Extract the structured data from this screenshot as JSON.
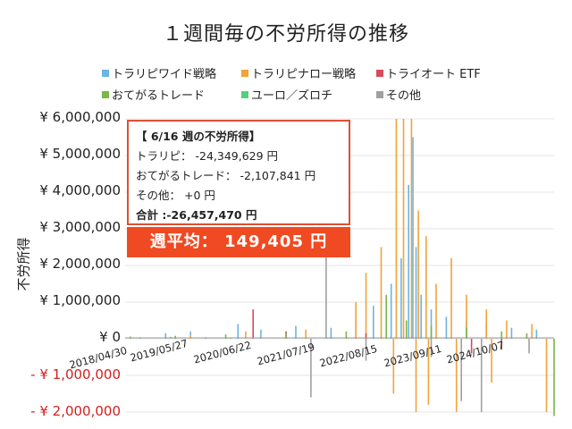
{
  "chart_data": {
    "type": "bar",
    "title": "１週間毎の不労所得の推移",
    "xlabel": "",
    "ylabel": "不労所得",
    "ylim": [
      -2000000,
      6000000
    ],
    "y_ticks": [
      {
        "value": 6000000,
        "label": "¥ 6,000,000"
      },
      {
        "value": 5000000,
        "label": "¥ 5,000,000"
      },
      {
        "value": 4000000,
        "label": "¥ 4,000,000"
      },
      {
        "value": 3000000,
        "label": "¥ 3,000,000"
      },
      {
        "value": 2000000,
        "label": "¥ 2,000,000"
      },
      {
        "value": 1000000,
        "label": "¥ 1,000,000"
      },
      {
        "value": 0,
        "label": "¥ 0"
      },
      {
        "value": -1000000,
        "label": "- ¥ 1,000,000"
      },
      {
        "value": -2000000,
        "label": "- ¥ 2,000,000"
      }
    ],
    "x_range": [
      "2018-04-30",
      "2025-06-16"
    ],
    "x_ticks": [
      "2018/04/30",
      "2019/05/27",
      "2020/06/22",
      "2021/07/19",
      "2022/08/15",
      "2023/09/11",
      "2024/10/07"
    ],
    "legend_position": "top",
    "series": [
      {
        "name": "トラリピワイド戦略",
        "color": "#6bb5e0",
        "points": [
          [
            "2019-01-01",
            150000
          ],
          [
            "2019-06-01",
            200000
          ],
          [
            "2020-03-15",
            400000
          ],
          [
            "2020-08-01",
            250000
          ],
          [
            "2021-03-01",
            350000
          ],
          [
            "2021-10-01",
            300000
          ],
          [
            "2022-03-01",
            500000
          ],
          [
            "2022-06-15",
            900000
          ],
          [
            "2022-10-01",
            1500000
          ],
          [
            "2022-12-01",
            2200000
          ],
          [
            "2023-01-15",
            4200000
          ],
          [
            "2023-02-10",
            5500000
          ],
          [
            "2023-03-01",
            2500000
          ],
          [
            "2023-04-01",
            1200000
          ],
          [
            "2023-06-01",
            800000
          ],
          [
            "2023-09-01",
            600000
          ],
          [
            "2024-01-01",
            500000
          ],
          [
            "2024-05-01",
            400000
          ],
          [
            "2024-10-01",
            300000
          ],
          [
            "2025-03-01",
            250000
          ]
        ]
      },
      {
        "name": "トラリピナロー戦略",
        "color": "#f2a33a",
        "points": [
          [
            "2019-06-01",
            100000
          ],
          [
            "2020-05-01",
            200000
          ],
          [
            "2021-05-01",
            250000
          ],
          [
            "2022-03-01",
            1000000
          ],
          [
            "2022-05-01",
            1800000
          ],
          [
            "2022-08-01",
            2500000
          ],
          [
            "2022-11-01",
            6000000
          ],
          [
            "2022-12-15",
            6000000
          ],
          [
            "2023-02-01",
            6000000
          ],
          [
            "2023-03-15",
            3500000
          ],
          [
            "2023-05-01",
            2800000
          ],
          [
            "2023-07-01",
            1500000
          ],
          [
            "2023-10-01",
            2200000
          ],
          [
            "2024-01-01",
            1200000
          ],
          [
            "2024-05-01",
            800000
          ],
          [
            "2024-09-01",
            500000
          ],
          [
            "2025-02-01",
            400000
          ],
          [
            "2022-10-15",
            -1500000
          ],
          [
            "2023-03-01",
            -2000000
          ],
          [
            "2023-05-15",
            -1800000
          ],
          [
            "2023-11-01",
            -2000000
          ],
          [
            "2024-06-01",
            -1200000
          ],
          [
            "2025-05-01",
            -2000000
          ]
        ]
      },
      {
        "name": "トライオート ETF",
        "color": "#d94a5a",
        "points": [
          [
            "2020-06-15",
            800000
          ],
          [
            "2021-01-01",
            200000
          ],
          [
            "2022-05-01",
            150000
          ],
          [
            "2024-02-01",
            -400000
          ],
          [
            "2024-08-01",
            -300000
          ]
        ]
      },
      {
        "name": "おてがるトレード",
        "color": "#7ab648",
        "points": [
          [
            "2018-06-01",
            60000
          ],
          [
            "2019-03-01",
            80000
          ],
          [
            "2020-01-01",
            120000
          ],
          [
            "2021-01-01",
            150000
          ],
          [
            "2022-01-01",
            200000
          ],
          [
            "2022-09-01",
            1200000
          ],
          [
            "2023-01-01",
            500000
          ],
          [
            "2023-06-01",
            350000
          ],
          [
            "2024-01-01",
            300000
          ],
          [
            "2024-08-01",
            200000
          ],
          [
            "2025-01-01",
            150000
          ],
          [
            "2025-06-16",
            -2107841
          ]
        ]
      },
      {
        "name": "ユーロ／ズロチ",
        "color": "#55d07a",
        "points": [
          [
            "2018-08-01",
            40000
          ],
          [
            "2019-02-01",
            50000
          ],
          [
            "2019-09-01",
            40000
          ],
          [
            "2020-02-01",
            30000
          ]
        ]
      },
      {
        "name": "その他",
        "color": "#a0a0a0",
        "points": [
          [
            "2021-09-01",
            3000000
          ],
          [
            "2021-06-01",
            -1600000
          ],
          [
            "2022-05-01",
            -600000
          ],
          [
            "2023-06-01",
            -500000
          ],
          [
            "2023-12-01",
            -1700000
          ],
          [
            "2024-04-01",
            -2000000
          ],
          [
            "2025-01-15",
            -400000
          ]
        ]
      }
    ]
  },
  "info_box": {
    "title": "【 6/16 週の不労所得】",
    "rows": [
      {
        "label": "トラリピ：",
        "value": "-24,349,629 円"
      },
      {
        "label": "おてがるトレード：",
        "value": "-2,107,841 円"
      },
      {
        "label": "その他：",
        "value": "+0 円"
      }
    ],
    "total_label": "合計 :",
    "total_value": "-26,457,470 円"
  },
  "average_banner": {
    "label": "週平均：",
    "value": "149,405 円"
  }
}
